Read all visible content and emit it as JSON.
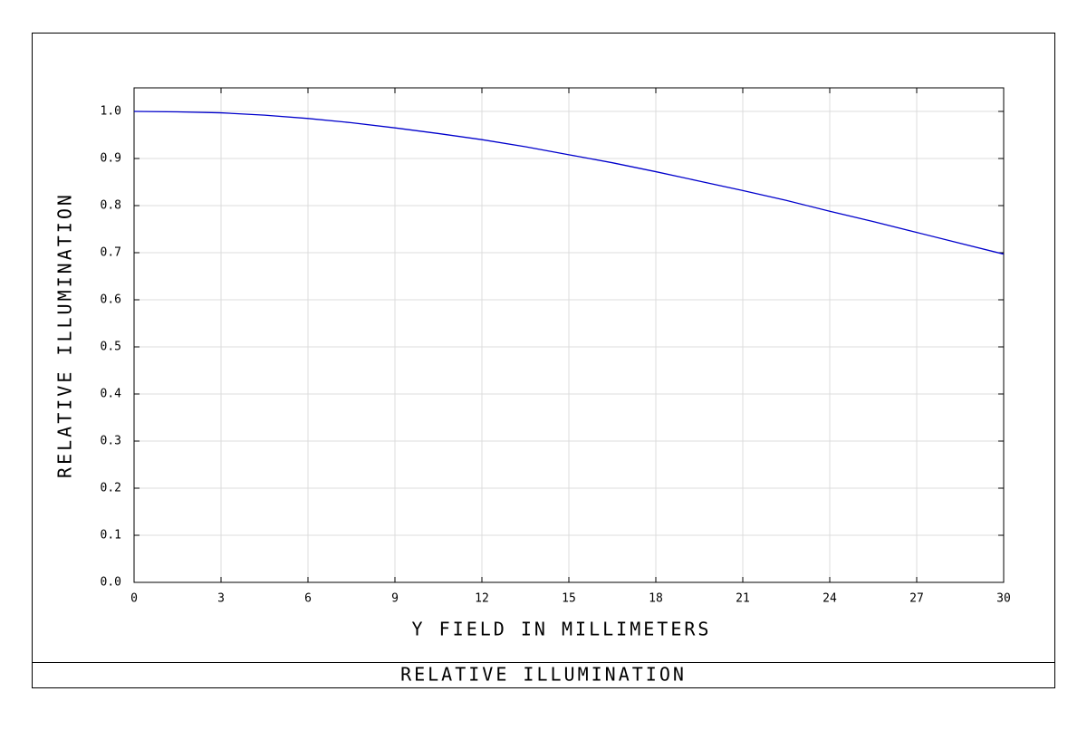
{
  "chart_data": {
    "type": "line",
    "title": "RELATIVE ILLUMINATION",
    "xlabel": "Y FIELD IN MILLIMETERS",
    "ylabel": "RELATIVE ILLUMINATION",
    "x": [
      0,
      1.5,
      3,
      4.5,
      6,
      7.5,
      9,
      10.5,
      12,
      13.5,
      15,
      16.5,
      18,
      19.5,
      21,
      22.5,
      24,
      25.5,
      27,
      28.5,
      30
    ],
    "series": [
      {
        "color": "#0000cc",
        "values": [
          1.0,
          0.999,
          0.997,
          0.992,
          0.985,
          0.976,
          0.965,
          0.953,
          0.94,
          0.925,
          0.908,
          0.891,
          0.872,
          0.852,
          0.832,
          0.811,
          0.788,
          0.766,
          0.743,
          0.72,
          0.697
        ]
      }
    ],
    "xlim": [
      0,
      30
    ],
    "xticks": [
      0,
      3,
      6,
      9,
      12,
      15,
      18,
      21,
      24,
      27,
      30
    ],
    "ylim": [
      0,
      1.05
    ],
    "yticks": [
      {
        "value": 0,
        "label": "0.0"
      },
      0.1,
      0.2,
      0.3,
      0.4,
      0.5,
      0.6,
      0.7,
      0.8,
      0.9,
      {
        "value": 1,
        "label": "1.0"
      }
    ],
    "grid": true
  }
}
